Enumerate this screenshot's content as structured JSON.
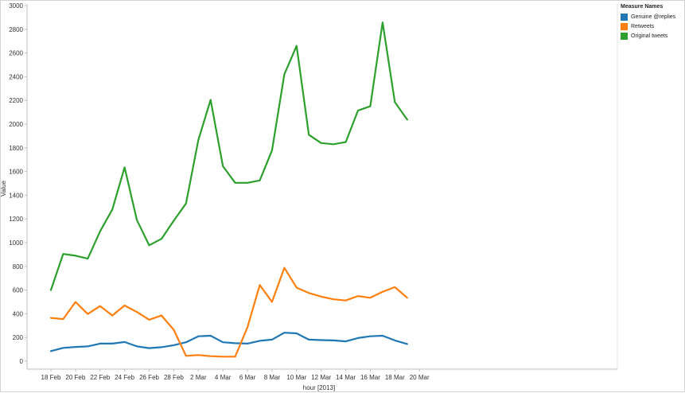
{
  "chart_data": {
    "type": "line",
    "xlabel": "hour [2013]",
    "ylabel": "Value",
    "ylim": [
      0,
      3000
    ],
    "yticks": [
      0,
      200,
      400,
      600,
      800,
      1000,
      1200,
      1400,
      1600,
      1800,
      2000,
      2200,
      2400,
      2600,
      2800,
      3000
    ],
    "xticks": [
      "18 Feb",
      "20 Feb",
      "22 Feb",
      "24 Feb",
      "26 Feb",
      "28 Feb",
      "2 Mar",
      "4 Mar",
      "6 Mar",
      "8 Mar",
      "10 Mar",
      "12 Mar",
      "14 Mar",
      "16 Mar",
      "18 Mar",
      "20 Mar"
    ],
    "x": [
      "18 Feb",
      "19 Feb",
      "20 Feb",
      "21 Feb",
      "22 Feb",
      "23 Feb",
      "24 Feb",
      "25 Feb",
      "26 Feb",
      "27 Feb",
      "28 Feb",
      "1 Mar",
      "2 Mar",
      "3 Mar",
      "4 Mar",
      "5 Mar",
      "6 Mar",
      "7 Mar",
      "8 Mar",
      "9 Mar",
      "10 Mar",
      "11 Mar",
      "12 Mar",
      "13 Mar",
      "14 Mar",
      "15 Mar",
      "16 Mar",
      "17 Mar",
      "18 Mar",
      "19 Mar"
    ],
    "grid": false,
    "legend_position": "right",
    "series": [
      {
        "name": "Genuine @replies",
        "color": "#1f77b4",
        "values": [
          85,
          112,
          120,
          125,
          148,
          148,
          162,
          125,
          110,
          118,
          135,
          160,
          210,
          215,
          160,
          152,
          148,
          172,
          182,
          240,
          235,
          182,
          178,
          175,
          167,
          195,
          210,
          215,
          175,
          145
        ]
      },
      {
        "name": "Retweets",
        "color": "#ff7f0e",
        "values": [
          365,
          355,
          500,
          398,
          465,
          385,
          470,
          415,
          350,
          385,
          265,
          45,
          52,
          42,
          38,
          38,
          285,
          642,
          500,
          788,
          620,
          575,
          545,
          522,
          512,
          550,
          535,
          585,
          625,
          535
        ]
      },
      {
        "name": "Original tweets",
        "color": "#2ca02c",
        "values": [
          600,
          905,
          890,
          865,
          1095,
          1280,
          1635,
          1190,
          978,
          1032,
          1185,
          1330,
          1865,
          2205,
          1645,
          1505,
          1505,
          1525,
          1778,
          2420,
          2660,
          1910,
          1840,
          1830,
          1848,
          2115,
          2150,
          2858,
          2185,
          2038
        ]
      }
    ],
    "legend_title": "Measure Names"
  }
}
